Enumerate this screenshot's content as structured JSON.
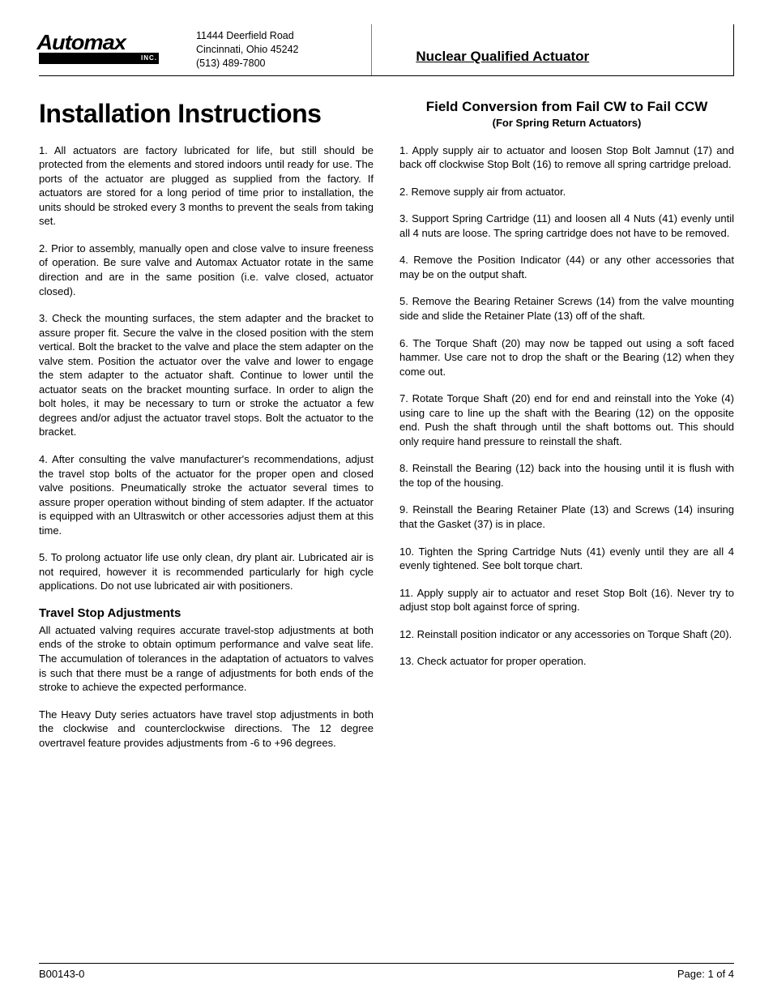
{
  "company": {
    "logo_text": "Automax",
    "logo_inc": "INC.",
    "address_line1": "11444 Deerfield Road",
    "address_line2": "Cincinnati, Ohio 45242",
    "phone": "(513) 489-7800"
  },
  "header_right_title": "Nuclear Qualified Actuator",
  "main_title": "Installation Instructions",
  "colors": {
    "text": "#000000",
    "background": "#ffffff",
    "border": "#000000",
    "divider": "#808080"
  },
  "typography": {
    "body_fontsize_pt": 10,
    "main_title_fontsize_pt": 24,
    "sub_heading_fontsize_pt": 11,
    "right_heading_fontsize_pt": 13,
    "font_family": "Arial"
  },
  "left_items": [
    "1.   All actuators are factory lubricated for life, but still should be protected from the elements and stored indoors until ready for use.  The ports of the actuator are plugged as supplied from the factory. If actuators are stored for a long period of time prior to installation, the units should be stroked every 3 months to prevent the seals from taking set.",
    "2.   Prior to assembly, manually open and close valve to insure freeness of operation.  Be sure valve and Automax Actuator rotate in the same direction and are in the same position (i.e. valve closed, actuator closed).",
    "3.   Check the mounting surfaces, the stem adapter and the bracket to assure proper fit.  Secure the valve in the closed position with the stem  vertical.  Bolt the bracket to the valve and place the stem adapter on the valve stem.  Position the actuator over the valve and lower to engage the stem adapter to the actuator shaft.  Continue to lower until the actuator seats on the bracket mounting surface.  In order to align the bolt holes, it may be necessary to turn or stroke the actuator a few degrees and/or adjust the actuator travel stops.  Bolt the actuator to the bracket.",
    "4.   After consulting the valve manufacturer's recommendations, adjust the travel stop bolts of the actuator for the proper open and closed valve positions.  Pneumatically stroke the actuator several times to assure proper operation without binding of stem adapter.  If the actuator is equipped with an Ultraswitch or other accessories adjust them at this time.",
    "5.   To prolong actuator life use only clean, dry plant air.  Lubricated air is not required, however it is recommended particularly for high cycle applications.  Do not use lubricated air with positioners."
  ],
  "travel_stop": {
    "heading": "Travel Stop Adjustments",
    "p1": "All actuated valving requires accurate travel-stop adjustments at both ends of the stroke to obtain optimum performance and valve seat life.  The accumulation of tolerances in the adaptation of actuators to valves is such that there must be a range of adjustments for both ends of the stroke to achieve the expected performance.",
    "p2": "The Heavy Duty series actuators have travel stop adjustments in both the clockwise and counterclockwise directions.  The 12 degree overtravel feature provides adjustments from -6 to +96 degrees."
  },
  "right_section": {
    "heading": "Field Conversion from Fail CW to Fail CCW",
    "subheading": "(For Spring Return Actuators)",
    "items": [
      "1.   Apply supply air to actuator and loosen Stop Bolt Jamnut (17) and back off clockwise Stop Bolt (16) to remove all spring cartridge preload.",
      "2.   Remove supply air from actuator.",
      "3.   Support Spring Cartridge (11) and loosen all 4 Nuts (41) evenly until all 4 nuts are loose.  The spring cartridge does not have to be removed.",
      "4.   Remove the Position Indicator (44) or any other accessories that may be on the output shaft.",
      "5.   Remove the Bearing Retainer Screws (14) from the valve mounting side and slide the Retainer Plate (13) off of the shaft.",
      "6.   The Torque Shaft (20) may now be tapped out using a soft faced hammer.  Use care not to drop the shaft or the Bearing (12) when they come out.",
      "7.   Rotate Torque Shaft (20) end for end and reinstall into the Yoke (4) using care to line up the shaft with the Bearing (12) on the opposite end.  Push the shaft through until the shaft bottoms out.  This should only require hand pressure to reinstall the shaft.",
      "8.   Reinstall the Bearing (12) back into the housing until it is flush with the top of the housing.",
      "9.   Reinstall the Bearing Retainer Plate (13) and Screws (14) insuring that the Gasket (37) is in place.",
      "10. Tighten the Spring Cartridge Nuts (41) evenly until they are all 4 evenly tightened.  See bolt torque chart.",
      "11. Apply supply air to actuator and reset Stop Bolt (16).  Never try to adjust stop bolt against force of spring.",
      "12. Reinstall position indicator or any accessories on Torque Shaft (20).",
      "13. Check actuator for proper operation."
    ]
  },
  "footer": {
    "doc_id": "B00143-0",
    "page_label": "Page:  1 of  4"
  }
}
